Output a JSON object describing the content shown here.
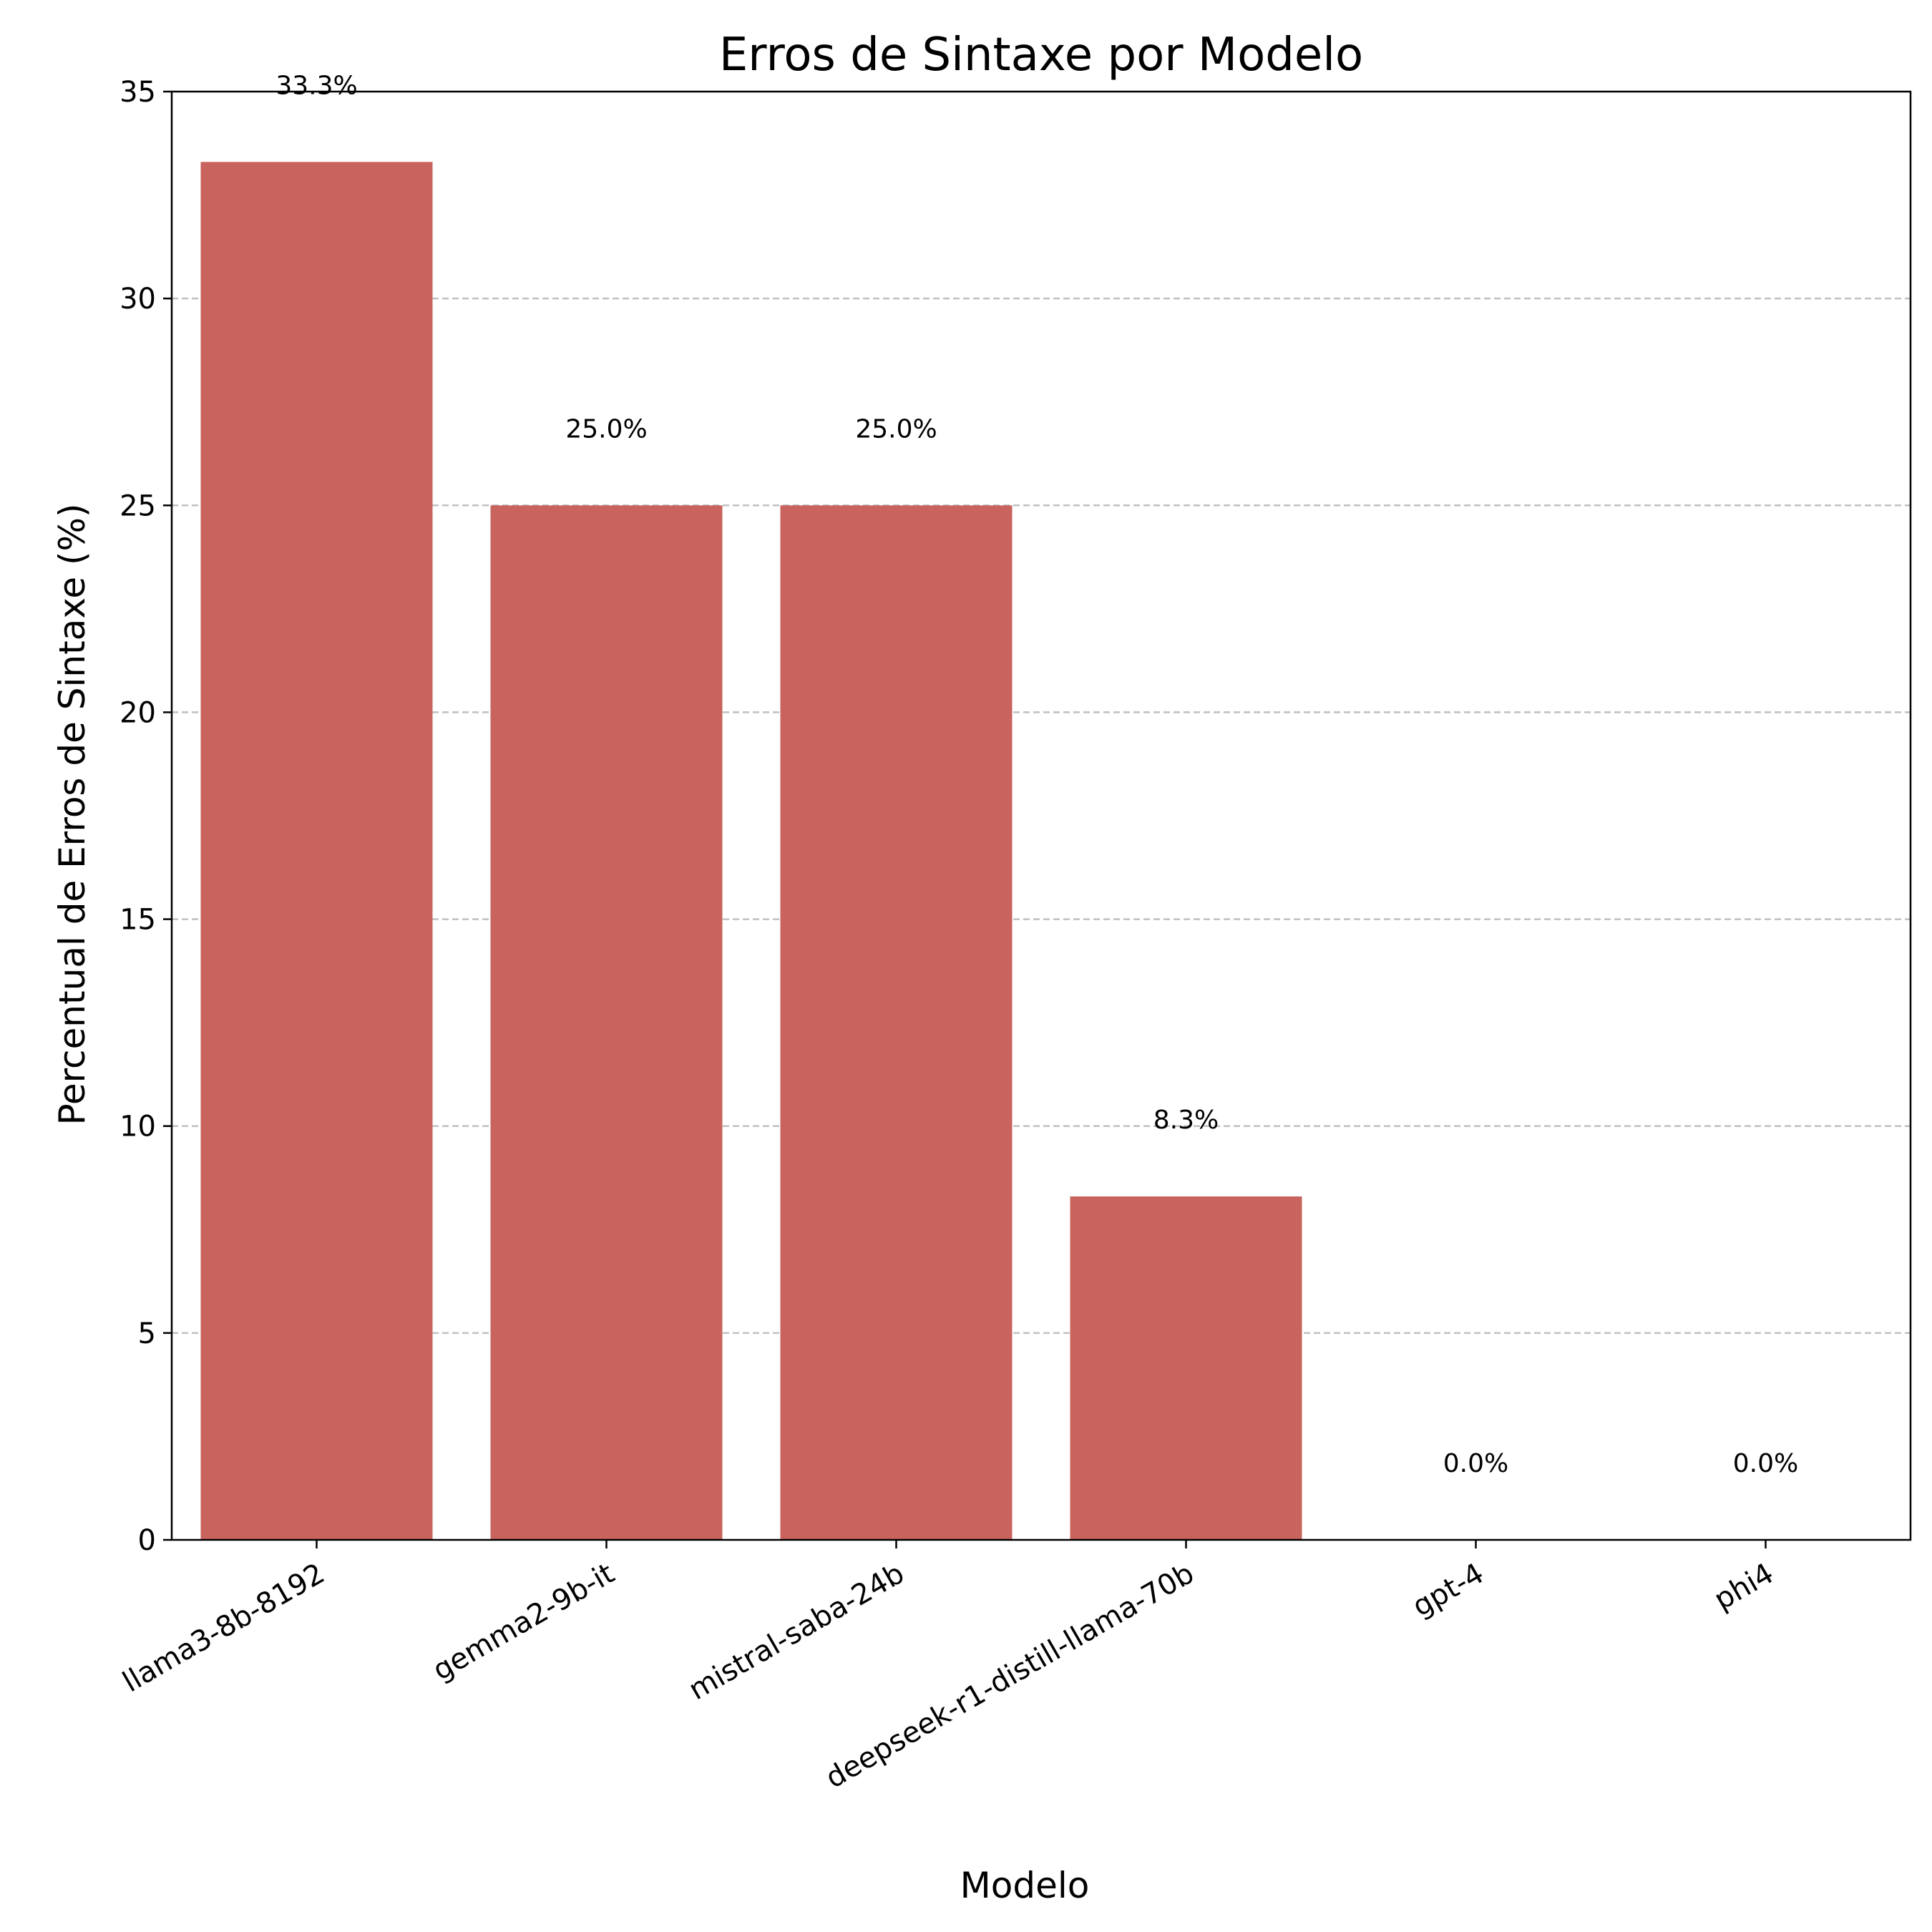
{
  "chart_data": {
    "type": "bar",
    "title": "Erros de Sintaxe por Modelo",
    "xlabel": "Modelo",
    "ylabel": "Percentual de Erros de Sintaxe (%)",
    "categories": [
      "llama3-8b-8192",
      "gemma2-9b-it",
      "mistral-saba-24b",
      "deepseek-r1-distill-llama-70b",
      "gpt-4",
      "phi4"
    ],
    "values": [
      33.3,
      25.0,
      25.0,
      8.3,
      0.0,
      0.0
    ],
    "value_labels": [
      "33.3%",
      "25.0%",
      "25.0%",
      "8.3%",
      "0.0%",
      "0.0%"
    ],
    "ylim": [
      0,
      35
    ],
    "yticks": [
      0,
      5,
      10,
      15,
      20,
      25,
      30,
      35
    ],
    "ytick_labels": [
      "0",
      "5",
      "10",
      "15",
      "20",
      "25",
      "30",
      "35"
    ],
    "grid": "y, dashed",
    "bar_color": "#c8635e"
  }
}
